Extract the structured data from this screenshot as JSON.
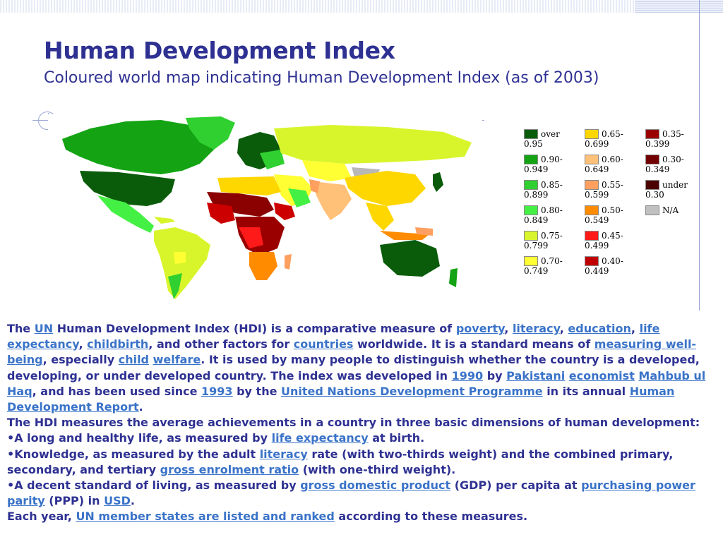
{
  "slide": {
    "title": "Human Development Index",
    "subtitle": "Coloured world map indicating Human Development Index (as of 2003)"
  },
  "map": {
    "image_description_free": true,
    "colors": {
      "ocean": "#ffffff",
      "very_high": "#0a5c0a",
      "high_a": "#13a313",
      "high_b": "#2fd02f",
      "high_c": "#44f044",
      "upper_mid": "#d8f52b",
      "mid": "#ffff33",
      "mid_low": "#ffd700",
      "low_a": "#ffc078",
      "low_b": "#ff9a00",
      "low_c": "#ff2a00",
      "very_low_a": "#cc0000",
      "very_low_b": "#8b0000",
      "very_low_c": "#5a0000",
      "na": "#b8b8b8"
    }
  },
  "legend": [
    {
      "color": "#0a5c0a",
      "line1": "over",
      "line2": "0.95"
    },
    {
      "color": "#13a313",
      "line1": "0.90-",
      "line2": "0.949"
    },
    {
      "color": "#2fd02f",
      "line1": "0.85-",
      "line2": "0.899"
    },
    {
      "color": "#44f044",
      "line1": "0.80-",
      "line2": "0.849"
    },
    {
      "color": "#d8f52b",
      "line1": "0.75-",
      "line2": "0.799"
    },
    {
      "color": "#ffff33",
      "line1": "0.70-",
      "line2": "0.749"
    },
    {
      "color": "#ffd700",
      "line1": "0.65-",
      "line2": "0.699"
    },
    {
      "color": "#ffc078",
      "line1": "0.60-",
      "line2": "0.649"
    },
    {
      "color": "#ffa060",
      "line1": "0.55-",
      "line2": "0.599"
    },
    {
      "color": "#ff8c00",
      "line1": "0.50-",
      "line2": "0.549"
    },
    {
      "color": "#ff1a1a",
      "line1": "0.45-",
      "line2": "0.499"
    },
    {
      "color": "#c00000",
      "line1": "0.40-",
      "line2": "0.449"
    },
    {
      "color": "#9a0000",
      "line1": "0.35-",
      "line2": "0.399"
    },
    {
      "color": "#720000",
      "line1": "0.30-",
      "line2": "0.349"
    },
    {
      "color": "#4a0000",
      "line1": "under",
      "line2": "0.30"
    },
    {
      "color": "#c0c0c0",
      "line1": "N/A",
      "line2": ""
    }
  ],
  "body": {
    "p1": {
      "t1": "The ",
      "l_un": "UN",
      "t2": " Human Development Index (HDI) is a comparative measure of ",
      "l_poverty": "poverty",
      "t3": ", ",
      "l_literacy": "literacy",
      "t4": ", ",
      "l_education": "education",
      "t5": ", ",
      "l_life": "life expectancy",
      "t6": ", ",
      "l_childbirth": "childbirth",
      "t7": ", and other factors for ",
      "l_countries": "countries",
      "t8": " worldwide. It is a standard means of ",
      "l_wellbeing": "measuring well-being",
      "t9": ", especially ",
      "l_child": "child",
      "t10": " ",
      "l_welfare": "welfare",
      "t11": ". It is used by many people to distinguish whether the country is a developed, developing, or under developed country. The index was developed in ",
      "l_1990": "1990",
      "t12": " by ",
      "l_pakistani": "Pakistani",
      "t13": " ",
      "l_economist": "economist",
      "t14": " ",
      "l_mahbub": "Mahbub ul Haq",
      "t15": ", and has been used since ",
      "l_1993": "1993",
      "t16": " by the ",
      "l_undp": "United Nations Development Programme",
      "t17": " in its annual ",
      "l_hdr": "Human Development Report",
      "t18": "."
    },
    "p2": "The HDI measures the average achievements in a country in three basic dimensions of human development:",
    "b1": {
      "t1": "•A long and healthy life, as measured by ",
      "l1": "life expectancy",
      "t2": " at birth."
    },
    "b2": {
      "t1": "•Knowledge, as measured by the adult ",
      "l1": "literacy",
      "t2": " rate (with two-thirds weight) and the combined primary, secondary, and tertiary ",
      "l2": "gross enrolment ratio",
      "t3": " (with one-third weight)."
    },
    "b3": {
      "t1": "•A decent standard of living, as measured by ",
      "l1": "gross domestic product",
      "t2": " (GDP) per capita at ",
      "l2": "purchasing power parity",
      "t3": " (PPP) in ",
      "l3": "USD",
      "t4": "."
    },
    "p3": {
      "t1": "Each year, ",
      "l1": "UN member states are listed and ranked",
      "t2": " according to these measures."
    }
  }
}
